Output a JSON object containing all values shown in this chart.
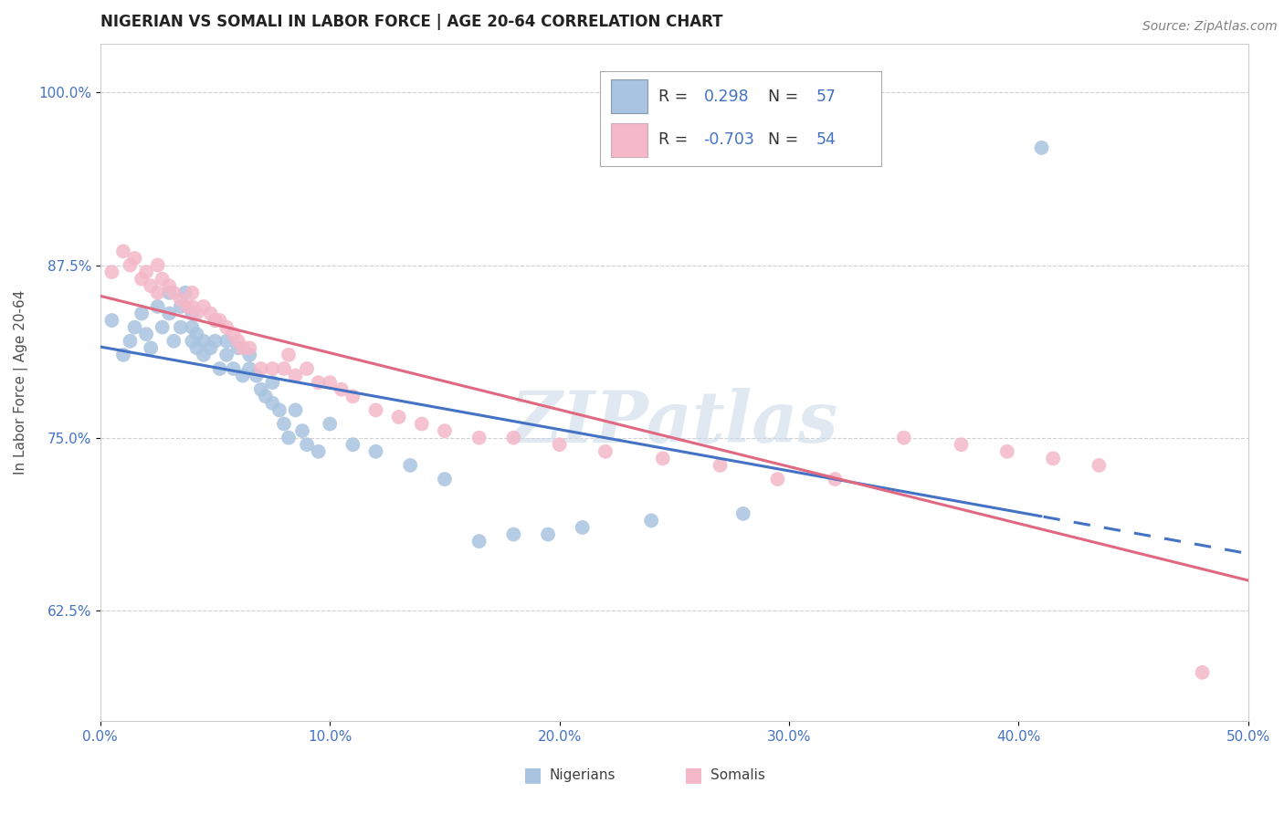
{
  "title": "NIGERIAN VS SOMALI IN LABOR FORCE | AGE 20-64 CORRELATION CHART",
  "source": "Source: ZipAtlas.com",
  "ylabel": "In Labor Force | Age 20-64",
  "xlim": [
    0.0,
    0.5
  ],
  "ylim": [
    0.545,
    1.035
  ],
  "xticks": [
    0.0,
    0.1,
    0.2,
    0.3,
    0.4,
    0.5
  ],
  "xticklabels": [
    "0.0%",
    "10.0%",
    "20.0%",
    "30.0%",
    "40.0%",
    "50.0%"
  ],
  "yticks": [
    0.625,
    0.75,
    0.875,
    1.0
  ],
  "yticklabels": [
    "62.5%",
    "75.0%",
    "87.5%",
    "100.0%"
  ],
  "nigerian_color": "#a8c4e0",
  "somali_color": "#f4b8c8",
  "trend_nigerian_color": "#4472c4",
  "trend_somali_color": "#e06880",
  "watermark": "ZIPatlas",
  "background_color": "#ffffff",
  "nigerian_x": [
    0.005,
    0.01,
    0.013,
    0.015,
    0.018,
    0.02,
    0.022,
    0.025,
    0.027,
    0.03,
    0.03,
    0.032,
    0.035,
    0.035,
    0.037,
    0.04,
    0.04,
    0.04,
    0.042,
    0.042,
    0.045,
    0.045,
    0.048,
    0.05,
    0.05,
    0.052,
    0.055,
    0.055,
    0.058,
    0.06,
    0.062,
    0.065,
    0.065,
    0.068,
    0.07,
    0.072,
    0.075,
    0.075,
    0.078,
    0.08,
    0.082,
    0.085,
    0.088,
    0.09,
    0.095,
    0.1,
    0.11,
    0.12,
    0.135,
    0.15,
    0.165,
    0.18,
    0.195,
    0.21,
    0.24,
    0.28,
    0.41
  ],
  "nigerian_y": [
    0.835,
    0.81,
    0.82,
    0.83,
    0.84,
    0.825,
    0.815,
    0.845,
    0.83,
    0.84,
    0.855,
    0.82,
    0.83,
    0.845,
    0.855,
    0.82,
    0.83,
    0.84,
    0.825,
    0.815,
    0.82,
    0.81,
    0.815,
    0.835,
    0.82,
    0.8,
    0.81,
    0.82,
    0.8,
    0.815,
    0.795,
    0.8,
    0.81,
    0.795,
    0.785,
    0.78,
    0.79,
    0.775,
    0.77,
    0.76,
    0.75,
    0.77,
    0.755,
    0.745,
    0.74,
    0.76,
    0.745,
    0.74,
    0.73,
    0.72,
    0.675,
    0.68,
    0.68,
    0.685,
    0.69,
    0.695,
    0.96
  ],
  "somali_x": [
    0.005,
    0.01,
    0.013,
    0.015,
    0.018,
    0.02,
    0.022,
    0.025,
    0.025,
    0.027,
    0.03,
    0.032,
    0.035,
    0.038,
    0.04,
    0.04,
    0.042,
    0.045,
    0.048,
    0.05,
    0.052,
    0.055,
    0.058,
    0.06,
    0.062,
    0.065,
    0.07,
    0.075,
    0.08,
    0.082,
    0.085,
    0.09,
    0.095,
    0.1,
    0.105,
    0.11,
    0.12,
    0.13,
    0.14,
    0.15,
    0.165,
    0.18,
    0.2,
    0.22,
    0.245,
    0.27,
    0.295,
    0.32,
    0.35,
    0.375,
    0.395,
    0.415,
    0.435,
    0.48
  ],
  "somali_y": [
    0.87,
    0.885,
    0.875,
    0.88,
    0.865,
    0.87,
    0.86,
    0.875,
    0.855,
    0.865,
    0.86,
    0.855,
    0.85,
    0.845,
    0.845,
    0.855,
    0.84,
    0.845,
    0.84,
    0.835,
    0.835,
    0.83,
    0.825,
    0.82,
    0.815,
    0.815,
    0.8,
    0.8,
    0.8,
    0.81,
    0.795,
    0.8,
    0.79,
    0.79,
    0.785,
    0.78,
    0.77,
    0.765,
    0.76,
    0.755,
    0.75,
    0.75,
    0.745,
    0.74,
    0.735,
    0.73,
    0.72,
    0.72,
    0.75,
    0.745,
    0.74,
    0.735,
    0.73,
    0.58
  ],
  "grid_color": "#d0d0d0",
  "title_fontsize": 12,
  "axis_label_color": "#505050",
  "tick_label_color": "#4472c4",
  "watermark_color": "#c8d8e8",
  "watermark_alpha": 0.55
}
